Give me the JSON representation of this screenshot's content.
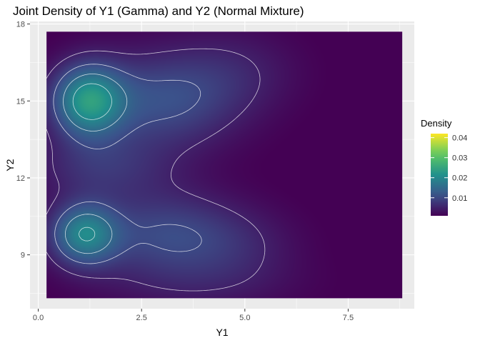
{
  "chart_data": {
    "type": "heatmap",
    "title": "Joint Density of Y1 (Gamma) and Y2 (Normal Mixture)",
    "xlabel": "Y1",
    "ylabel": "Y2",
    "xlim": [
      -0.2,
      9.1
    ],
    "ylim": [
      6.9,
      18.1
    ],
    "x_ticks": [
      0.0,
      2.5,
      5.0,
      7.5
    ],
    "x_tick_labels": [
      "0.0",
      "2.5",
      "5.0",
      "7.5"
    ],
    "y_ticks": [
      9,
      12,
      15,
      18
    ],
    "y_tick_labels": [
      "9",
      "12",
      "15",
      "18"
    ],
    "x_range": [
      0.2,
      8.8
    ],
    "y_range": [
      7.3,
      17.7
    ],
    "grid": true,
    "contours": true,
    "palette": [
      "#440154",
      "#3b528b",
      "#21918c",
      "#5ec962",
      "#fde725"
    ],
    "peaks": [
      {
        "x": 1.2,
        "y": 15.0,
        "density": 0.042
      },
      {
        "x": 1.1,
        "y": 9.8,
        "density": 0.037
      }
    ],
    "legend": {
      "title": "Density",
      "position": "right",
      "range": [
        0.001,
        0.042
      ],
      "ticks": [
        0.01,
        0.02,
        0.03,
        0.04
      ],
      "tick_labels": [
        "0.01",
        "0.02",
        "0.03",
        "0.04"
      ]
    }
  }
}
